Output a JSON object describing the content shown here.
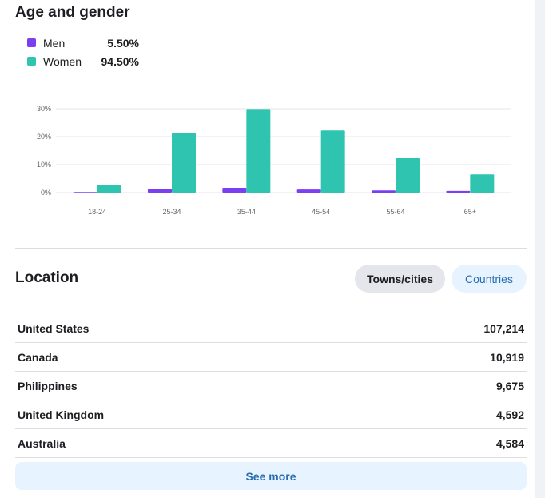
{
  "age_gender": {
    "title": "Age and gender",
    "legend": [
      {
        "label": "Men",
        "value": "5.50%",
        "color": "#7b3ff2"
      },
      {
        "label": "Women",
        "value": "94.50%",
        "color": "#2ec4b0"
      }
    ]
  },
  "chart_data": {
    "type": "bar",
    "categories": [
      "18-24",
      "25-34",
      "35-44",
      "45-54",
      "55-64",
      "65+"
    ],
    "series": [
      {
        "name": "Men",
        "values": [
          0.2,
          1.3,
          1.7,
          1.1,
          0.8,
          0.6
        ],
        "color": "#7b3ff2"
      },
      {
        "name": "Women",
        "values": [
          2.6,
          21.3,
          29.9,
          22.2,
          12.3,
          6.5
        ],
        "color": "#2ec4b0"
      }
    ],
    "yticks": [
      "0%",
      "10%",
      "20%",
      "30%"
    ],
    "ylim": [
      0,
      30
    ],
    "grid": true,
    "legend": "top-left"
  },
  "location": {
    "title": "Location",
    "tabs": [
      {
        "label": "Towns/cities",
        "selected": true
      },
      {
        "label": "Countries",
        "selected": false
      }
    ],
    "rows": [
      {
        "name": "United States",
        "value": "107,214"
      },
      {
        "name": "Canada",
        "value": "10,919"
      },
      {
        "name": "Philippines",
        "value": "9,675"
      },
      {
        "name": "United Kingdom",
        "value": "4,592"
      },
      {
        "name": "Australia",
        "value": "4,584"
      }
    ],
    "see_more_label": "See more"
  }
}
